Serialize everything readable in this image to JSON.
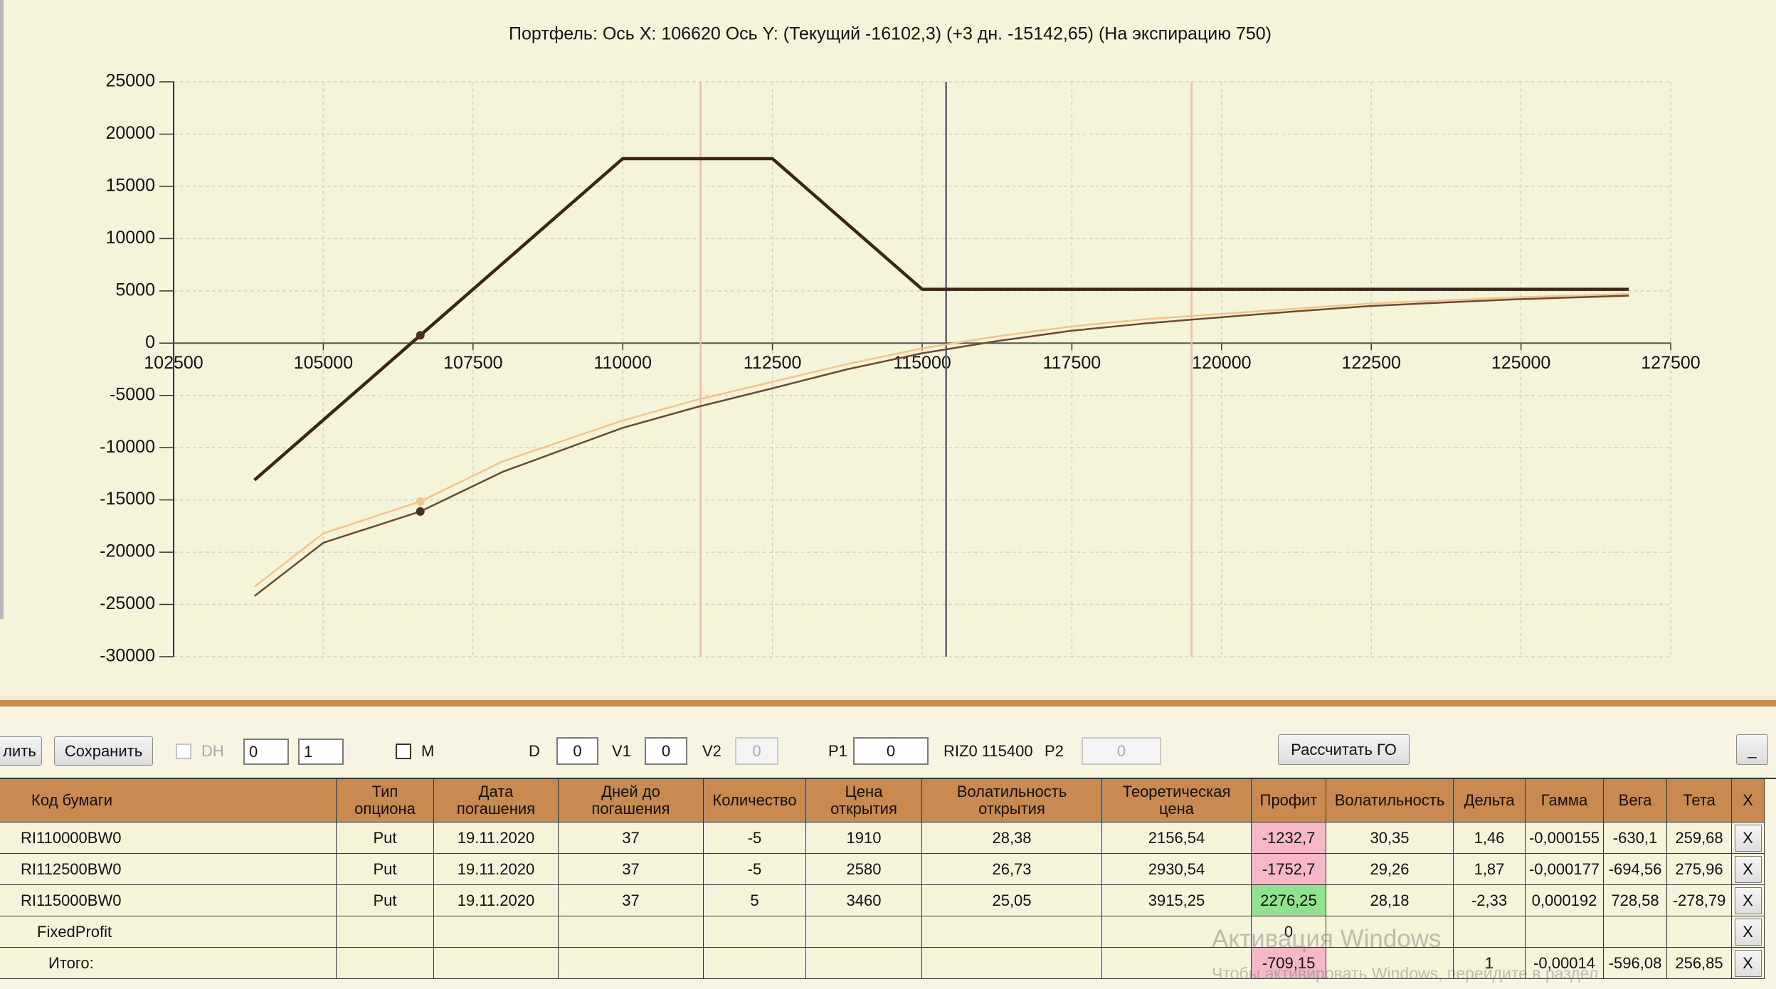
{
  "chart_data": {
    "type": "line",
    "title": "Портфель: Ось X: 106620 Ось Y:  (Текущий -16102,3)  (+3 дн. -15142,65)  (На экспирацию 750)",
    "x": [
      103850,
      105000,
      106620,
      108000,
      110000,
      111250,
      112500,
      113750,
      115000,
      116250,
      117500,
      118750,
      120000,
      121250,
      122500,
      123750,
      125000,
      126800
    ],
    "series": [
      {
        "color": "#3a2517",
        "values": [
          -13100,
          -7350,
          750,
          7650,
          17650,
          17650,
          17650,
          11400,
          5150,
          5150,
          5150,
          5150,
          5150,
          5150,
          5150,
          5150,
          5150,
          5150
        ]
      },
      {
        "color": "#f5c28c",
        "values": [
          -23300,
          -18200,
          -15142.65,
          -11300,
          -7400,
          -5400,
          -3700,
          -2000,
          -500,
          650,
          1600,
          2300,
          2800,
          3300,
          3800,
          4100,
          4400,
          4700
        ]
      },
      {
        "color": "#6b4a33",
        "values": [
          -24200,
          -19100,
          -16102.3,
          -12300,
          -8100,
          -6100,
          -4320,
          -2500,
          -970,
          200,
          1190,
          1900,
          2480,
          3050,
          3560,
          3900,
          4210,
          4540
        ]
      }
    ],
    "cursor_x": 106620,
    "vlines": [
      {
        "x": 111300,
        "color": "#f3b8b4"
      },
      {
        "x": 115400,
        "color": "#5b6272"
      },
      {
        "x": 119500,
        "color": "#f3b8b4"
      }
    ],
    "xlim": [
      102500,
      127500
    ],
    "xticks": [
      102500,
      105000,
      107500,
      110000,
      112500,
      115000,
      117500,
      120000,
      122500,
      125000,
      127500
    ],
    "ylim": [
      -30000,
      25000
    ],
    "yticks": [
      -30000,
      -25000,
      -20000,
      -15000,
      -10000,
      -5000,
      0,
      5000,
      10000,
      15000,
      20000,
      25000
    ],
    "grid": true
  },
  "toolbar": {
    "delete_button": "лить",
    "save_button": "Сохранить",
    "dh_label": "DH",
    "spin1": "0",
    "spin2": "1",
    "m_label": "M",
    "d_label": "D",
    "d_value": "0",
    "v1_label": "V1",
    "v1_value": "0",
    "v2_label": "V2",
    "v2_value": "0",
    "p1_label": "P1",
    "p1_value": "0",
    "instrument": "RIZ0 115400",
    "p2_label": "P2",
    "p2_value": "0",
    "calc_button": "Рассчитать ГО",
    "minimize_button": "_"
  },
  "table": {
    "headers": [
      "Код бумаги",
      "Тип\nопциона",
      "Дата\nпогашения",
      "Дней до\nпогашения",
      "Количество",
      "Цена\nоткрытия",
      "Волатильность\nоткрытия",
      "Теоретическая\nцена",
      "Профит",
      "Волатильность",
      "Дельта",
      "Гамма",
      "Вега",
      "Тета",
      "X"
    ],
    "row_button": "X",
    "rows": [
      {
        "cells": [
          "RI110000BW0",
          "Put",
          "19.11.2020",
          "37",
          "-5",
          "1910",
          "28,38",
          "2156,54",
          "-1232,7",
          "30,35",
          "1,46",
          "-0,000155",
          "-630,1",
          "259,68"
        ],
        "profit_fill": "#f6b8c6"
      },
      {
        "cells": [
          "RI112500BW0",
          "Put",
          "19.11.2020",
          "37",
          "-5",
          "2580",
          "26,73",
          "2930,54",
          "-1752,7",
          "29,26",
          "1,87",
          "-0,000177",
          "-694,56",
          "275,96"
        ],
        "profit_fill": "#f6b8c6"
      },
      {
        "cells": [
          "RI115000BW0",
          "Put",
          "19.11.2020",
          "37",
          "5",
          "3460",
          "25,05",
          "3915,25",
          "2276,25",
          "28,18",
          "-2,33",
          "0,000192",
          "728,58",
          "-278,79"
        ],
        "profit_fill": "#90e28e"
      },
      {
        "cells": [
          "FixedProfit",
          null,
          null,
          null,
          null,
          null,
          null,
          null,
          "0",
          null,
          null,
          null,
          null,
          null
        ],
        "profit_fill": null
      },
      {
        "cells": [
          "Итого:",
          null,
          null,
          null,
          null,
          null,
          null,
          null,
          "-709,15",
          null,
          "1",
          "-0,00014",
          "-596,08",
          "256,85"
        ],
        "profit_fill": "#f6b8c6"
      }
    ]
  },
  "watermark": {
    "title": "Активация Windows",
    "text": "Чтобы активировать Windows, перейдите в раздел"
  }
}
